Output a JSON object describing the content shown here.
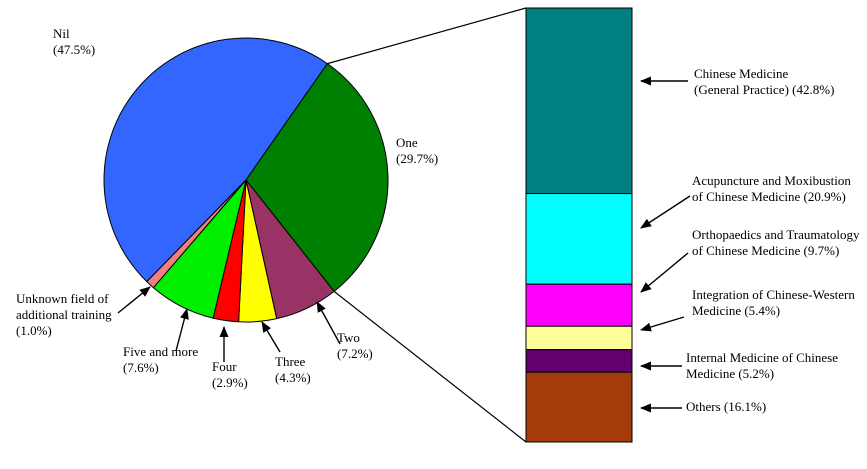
{
  "figure": {
    "background_color": "#FFFFFF",
    "description_visible_text_only": true
  },
  "chart_data": [
    {
      "type": "pie",
      "title": "",
      "legend": "none",
      "slices": [
        {
          "label": "Nil",
          "value_pct": 47.5,
          "pct_text": "(47.5%)",
          "color": "#3366FF",
          "lines": [
            "Nil",
            "(47.5%)"
          ]
        },
        {
          "label": "One",
          "value_pct": 29.7,
          "pct_text": "(29.7%)",
          "color": "#008000",
          "lines": [
            "One",
            "(29.7%)"
          ]
        },
        {
          "label": "Two",
          "value_pct": 7.2,
          "pct_text": "(7.2%)",
          "color": "#993366",
          "lines": [
            "Two",
            "(7.2%)"
          ]
        },
        {
          "label": "Three",
          "value_pct": 4.3,
          "pct_text": "(4.3%)",
          "color": "#FFFF00",
          "lines": [
            "Three",
            "(4.3%)"
          ]
        },
        {
          "label": "Four",
          "value_pct": 2.9,
          "pct_text": "(2.9%)",
          "color": "#FF0000",
          "lines": [
            "Four",
            "(2.9%)"
          ]
        },
        {
          "label": "Five and more",
          "value_pct": 7.6,
          "pct_text": "(7.6%)",
          "color": "#00EE00",
          "lines": [
            "Five and more",
            "(7.6%)"
          ]
        },
        {
          "label": "Unknown field of additional training",
          "value_pct": 1.0,
          "pct_text": "(1.0%)",
          "color": "#F08080",
          "lines": [
            "Unknown field of",
            "additional training",
            "(1.0%)"
          ]
        }
      ]
    },
    {
      "type": "bar",
      "subtype": "stacked-single-column-breakdown",
      "title": "",
      "legend": "none",
      "segments": [
        {
          "label": "Chinese Medicine (General Practice)",
          "value_pct": 42.8,
          "pct_text": "(42.8%)",
          "color": "#008080",
          "lines": [
            "Chinese Medicine",
            "(General Practice) (42.8%)"
          ]
        },
        {
          "label": "Acupuncture and Moxibustion of Chinese Medicine",
          "value_pct": 20.9,
          "pct_text": "(20.9%)",
          "color": "#00FFFF",
          "lines": [
            "Acupuncture and Moxibustion",
            "of Chinese Medicine (20.9%)"
          ]
        },
        {
          "label": "Orthopaedics and Traumatology of Chinese Medicine",
          "value_pct": 9.7,
          "pct_text": "(9.7%)",
          "color": "#FF00FF",
          "lines": [
            "Orthopaedics and Traumatology",
            "of Chinese Medicine (9.7%)"
          ]
        },
        {
          "label": "Integration of Chinese-Western Medicine",
          "value_pct": 5.4,
          "pct_text": "(5.4%)",
          "color": "#FFFF99",
          "lines": [
            "Integration of Chinese-Western",
            "Medicine (5.4%)"
          ]
        },
        {
          "label": "Internal Medicine of Chinese Medicine",
          "value_pct": 5.2,
          "pct_text": "(5.2%)",
          "color": "#630070",
          "lines": [
            "Internal Medicine of Chinese",
            "Medicine (5.2%)"
          ]
        },
        {
          "label": "Others",
          "value_pct": 16.1,
          "pct_text": "(16.1%)",
          "color": "#A33B0B",
          "lines": [
            "Others (16.1%)"
          ]
        }
      ]
    }
  ]
}
